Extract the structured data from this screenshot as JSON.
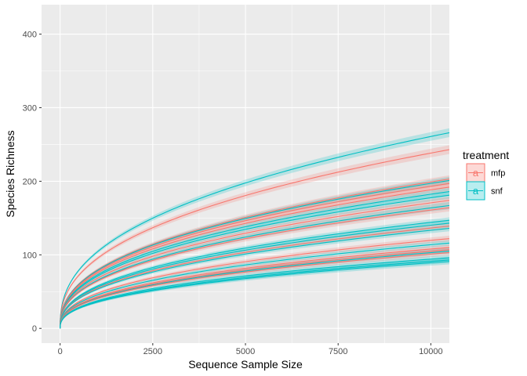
{
  "chart_data": {
    "type": "line",
    "xlabel": "Sequence Sample Size",
    "ylabel": "Species Richness",
    "xlim": [
      -500,
      10500
    ],
    "ylim": [
      -20,
      440
    ],
    "x_ticks": [
      0,
      2500,
      5000,
      7500,
      10000
    ],
    "x_tick_labels": [
      "0",
      "2500",
      "5000",
      "7500",
      "10000"
    ],
    "y_ticks": [
      0,
      100,
      200,
      300,
      400
    ],
    "y_tick_labels": [
      "0",
      "100",
      "200",
      "300",
      "400"
    ],
    "grid": true,
    "legend": {
      "title": "treatment",
      "position": "right",
      "entries": [
        {
          "label": "mfp",
          "color": "#F8766D",
          "glyph": "a"
        },
        {
          "label": "snf",
          "color": "#00BFC4",
          "glyph": "a"
        }
      ]
    },
    "curve_form": "power",
    "ribbon": true,
    "x_range": [
      0,
      10500
    ],
    "series": [
      {
        "group": "snf",
        "end_value": 266,
        "ribbon_halfwidth": 6
      },
      {
        "group": "mfp",
        "end_value": 243,
        "ribbon_halfwidth": 6
      },
      {
        "group": "mfp",
        "end_value": 203,
        "ribbon_halfwidth": 5
      },
      {
        "group": "snf",
        "end_value": 201,
        "ribbon_halfwidth": 5
      },
      {
        "group": "mfp",
        "end_value": 197,
        "ribbon_halfwidth": 5
      },
      {
        "group": "mfp",
        "end_value": 192,
        "ribbon_halfwidth": 5
      },
      {
        "group": "snf",
        "end_value": 186,
        "ribbon_halfwidth": 5
      },
      {
        "group": "snf",
        "end_value": 181,
        "ribbon_halfwidth": 5
      },
      {
        "group": "mfp",
        "end_value": 174,
        "ribbon_halfwidth": 5
      },
      {
        "group": "snf",
        "end_value": 167,
        "ribbon_halfwidth": 5
      },
      {
        "group": "mfp",
        "end_value": 164,
        "ribbon_halfwidth": 5
      },
      {
        "group": "snf",
        "end_value": 147,
        "ribbon_halfwidth": 4
      },
      {
        "group": "snf",
        "end_value": 143,
        "ribbon_halfwidth": 4
      },
      {
        "group": "mfp",
        "end_value": 139,
        "ribbon_halfwidth": 4
      },
      {
        "group": "snf",
        "end_value": 136,
        "ribbon_halfwidth": 4
      },
      {
        "group": "mfp",
        "end_value": 122,
        "ribbon_halfwidth": 4
      },
      {
        "group": "snf",
        "end_value": 116,
        "ribbon_halfwidth": 4
      },
      {
        "group": "mfp",
        "end_value": 110,
        "ribbon_halfwidth": 4
      },
      {
        "group": "mfp",
        "end_value": 107,
        "ribbon_halfwidth": 4
      },
      {
        "group": "snf",
        "end_value": 105,
        "ribbon_halfwidth": 4
      },
      {
        "group": "mfp",
        "end_value": 103,
        "ribbon_halfwidth": 4
      },
      {
        "group": "snf",
        "end_value": 96,
        "ribbon_halfwidth": 4
      },
      {
        "group": "snf",
        "end_value": 93,
        "ribbon_halfwidth": 4
      },
      {
        "group": "snf",
        "end_value": 91,
        "ribbon_halfwidth": 4
      }
    ]
  }
}
